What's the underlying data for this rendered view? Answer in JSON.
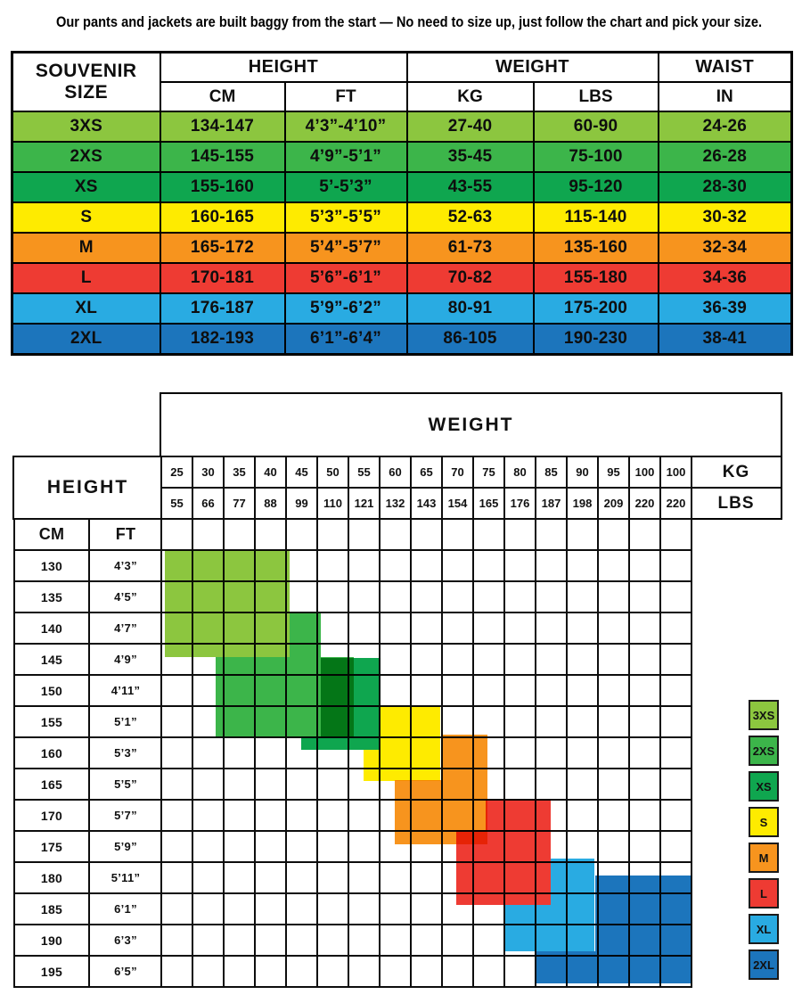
{
  "title": "Our pants and jackets are built baggy from the start — No need to size up, just follow the chart and pick your size.",
  "palette": {
    "light_green": "#8CC63F",
    "green": "#3CB54A",
    "teal": "#0FA64F",
    "yellow": "#FEEB00",
    "orange": "#F7941E",
    "red": "#EE3B33",
    "light_blue": "#29ABE2",
    "dark_blue": "#1C75BC"
  },
  "size_table": {
    "header": {
      "size_col": "SOUVENIR SIZE",
      "height_group": "HEIGHT",
      "weight_group": "WEIGHT",
      "waist_group": "WAIST",
      "unit_cm": "CM",
      "unit_ft": "FT",
      "unit_kg": "KG",
      "unit_lbs": "LBS",
      "unit_in": "IN"
    },
    "rows": [
      {
        "label": "3XS",
        "cm": "134-147",
        "ft": "4’3”-4’10”",
        "kg": "27-40",
        "lbs": "60-90",
        "in": "24-26",
        "color": "#8CC63F"
      },
      {
        "label": "2XS",
        "cm": "145-155",
        "ft": "4’9”-5’1”",
        "kg": "35-45",
        "lbs": "75-100",
        "in": "26-28",
        "color": "#3CB54A"
      },
      {
        "label": "XS",
        "cm": "155-160",
        "ft": "5’-5’3”",
        "kg": "43-55",
        "lbs": "95-120",
        "in": "28-30",
        "color": "#0FA64F"
      },
      {
        "label": "S",
        "cm": "160-165",
        "ft": "5’3”-5’5”",
        "kg": "52-63",
        "lbs": "115-140",
        "in": "30-32",
        "color": "#FEEB00"
      },
      {
        "label": "M",
        "cm": "165-172",
        "ft": "5’4”-5’7”",
        "kg": "61-73",
        "lbs": "135-160",
        "in": "32-34",
        "color": "#F7941E"
      },
      {
        "label": "L",
        "cm": "170-181",
        "ft": "5’6”-6’1”",
        "kg": "70-82",
        "lbs": "155-180",
        "in": "34-36",
        "color": "#EE3B33"
      },
      {
        "label": "XL",
        "cm": "176-187",
        "ft": "5’9”-6’2”",
        "kg": "80-91",
        "lbs": "175-200",
        "in": "36-39",
        "color": "#29ABE2"
      },
      {
        "label": "2XL",
        "cm": "182-193",
        "ft": "6’1”-6’4”",
        "kg": "86-105",
        "lbs": "190-230",
        "in": "38-41",
        "color": "#1C75BC"
      }
    ]
  },
  "chart": {
    "weight_label": "WEIGHT",
    "height_label": "HEIGHT",
    "kg_label": "KG",
    "lbs_label": "LBS",
    "cm_label": "CM",
    "ft_label": "FT",
    "kg_values": [
      "25",
      "30",
      "35",
      "40",
      "45",
      "50",
      "55",
      "60",
      "65",
      "70",
      "75",
      "80",
      "85",
      "90",
      "95",
      "100",
      "100"
    ],
    "lbs_values": [
      "55",
      "66",
      "77",
      "88",
      "99",
      "110",
      "121",
      "132",
      "143",
      "154",
      "165",
      "176",
      "187",
      "198",
      "209",
      "220",
      "220"
    ],
    "height_rows": [
      {
        "cm": "130",
        "ft": "4’3”"
      },
      {
        "cm": "135",
        "ft": "4’5”"
      },
      {
        "cm": "140",
        "ft": "4’7”"
      },
      {
        "cm": "145",
        "ft": "4’9”"
      },
      {
        "cm": "150",
        "ft": "4’11”"
      },
      {
        "cm": "155",
        "ft": "5’1”"
      },
      {
        "cm": "160",
        "ft": "5’3”"
      },
      {
        "cm": "165",
        "ft": "5’5”"
      },
      {
        "cm": "170",
        "ft": "5’7”"
      },
      {
        "cm": "175",
        "ft": "5’9”"
      },
      {
        "cm": "180",
        "ft": "5’11”"
      },
      {
        "cm": "185",
        "ft": "6’1”"
      },
      {
        "cm": "190",
        "ft": "6’3”"
      },
      {
        "cm": "195",
        "ft": "6’5”"
      }
    ],
    "blocks": [
      {
        "size": "3XS",
        "color": "#8CC63F",
        "rects": [
          [
            185,
            617,
            140,
            120
          ]
        ]
      },
      {
        "size": "2XS",
        "color": "#3CB54A",
        "rects": [
          [
            325,
            687,
            35,
            50
          ],
          [
            242,
            737,
            155,
            90
          ]
        ]
      },
      {
        "size": "XS",
        "color": "#0FA64F",
        "rects": [
          [
            360,
            738,
            67,
            88
          ],
          [
            338,
            826,
            88,
            15
          ]
        ]
      },
      {
        "size": "S",
        "color": "#FEEB00",
        "rects": [
          [
            425,
            792,
            69,
            84
          ],
          [
            408,
            841,
            17,
            35
          ]
        ]
      },
      {
        "size": "M",
        "color": "#F7941E",
        "rects": [
          [
            495,
            824,
            52,
            123
          ],
          [
            443,
            875,
            52,
            72
          ]
        ]
      },
      {
        "size": "L",
        "color": "#EE3B33",
        "rects": [
          [
            545,
            896,
            73,
            119
          ],
          [
            512,
            931,
            33,
            84
          ]
        ]
      },
      {
        "size": "XL",
        "color": "#29ABE2",
        "rects": [
          [
            618,
            963,
            49,
            104
          ],
          [
            567,
            1015,
            51,
            52
          ]
        ]
      },
      {
        "size": "2XL",
        "color": "#1C75BC",
        "rects": [
          [
            668,
            982,
            108,
            121
          ],
          [
            600,
            1067,
            68,
            36
          ]
        ]
      }
    ],
    "legend": [
      {
        "label": "3XS",
        "color": "#8CC63F"
      },
      {
        "label": "2XS",
        "color": "#3CB54A"
      },
      {
        "label": "XS",
        "color": "#0FA64F"
      },
      {
        "label": "S",
        "color": "#FEEB00"
      },
      {
        "label": "M",
        "color": "#F7941E"
      },
      {
        "label": "L",
        "color": "#EE3B33"
      },
      {
        "label": "XL",
        "color": "#29ABE2"
      },
      {
        "label": "2XL",
        "color": "#1C75BC"
      }
    ]
  },
  "chart_data": [
    {
      "type": "table",
      "title": "SOUVENIR SIZE",
      "columns": [
        "SIZE",
        "HEIGHT CM",
        "HEIGHT FT",
        "WEIGHT KG",
        "WEIGHT LBS",
        "WAIST IN"
      ],
      "rows": [
        [
          "3XS",
          "134-147",
          "4’3”-4’10”",
          "27-40",
          "60-90",
          "24-26"
        ],
        [
          "2XS",
          "145-155",
          "4’9”-5’1”",
          "35-45",
          "75-100",
          "26-28"
        ],
        [
          "XS",
          "155-160",
          "5’-5’3”",
          "43-55",
          "95-120",
          "28-30"
        ],
        [
          "S",
          "160-165",
          "5’3”-5’5”",
          "52-63",
          "115-140",
          "30-32"
        ],
        [
          "M",
          "165-172",
          "5’4”-5’7”",
          "61-73",
          "135-160",
          "32-34"
        ],
        [
          "L",
          "170-181",
          "5’6”-6’1”",
          "70-82",
          "155-180",
          "34-36"
        ],
        [
          "XL",
          "176-187",
          "5’9”-6’2”",
          "80-91",
          "175-200",
          "36-39"
        ],
        [
          "2XL",
          "182-193",
          "6’1”-6’4”",
          "86-105",
          "190-230",
          "38-41"
        ]
      ]
    },
    {
      "type": "heatmap",
      "title": "Size regions by HEIGHT (rows) vs WEIGHT (columns)",
      "x_ticks_kg": [
        25,
        30,
        35,
        40,
        45,
        50,
        55,
        60,
        65,
        70,
        75,
        80,
        85,
        90,
        95,
        100,
        100
      ],
      "x_ticks_lbs": [
        55,
        66,
        77,
        88,
        99,
        110,
        121,
        132,
        143,
        154,
        165,
        176,
        187,
        198,
        209,
        220,
        220
      ],
      "y_ticks_cm": [
        130,
        135,
        140,
        145,
        150,
        155,
        160,
        165,
        170,
        175,
        180,
        185,
        190,
        195
      ],
      "grid": "on",
      "legend_position": "right",
      "regions": [
        {
          "size": "3XS",
          "kg_range": "25-45",
          "cm_range": "130-145"
        },
        {
          "size": "2XS",
          "kg_range": "32-55",
          "cm_range": "142-155"
        },
        {
          "size": "XS",
          "kg_range": "47-60",
          "cm_range": "148-160"
        },
        {
          "size": "S",
          "kg_range": "57-70",
          "cm_range": "160-168"
        },
        {
          "size": "M",
          "kg_range": "62-77",
          "cm_range": "161-176"
        },
        {
          "size": "L",
          "kg_range": "72-87",
          "cm_range": "170-185"
        },
        {
          "size": "XL",
          "kg_range": "80-94",
          "cm_range": "178-192"
        },
        {
          "size": "2XL",
          "kg_range": "85-105",
          "cm_range": "180-195"
        }
      ]
    }
  ]
}
